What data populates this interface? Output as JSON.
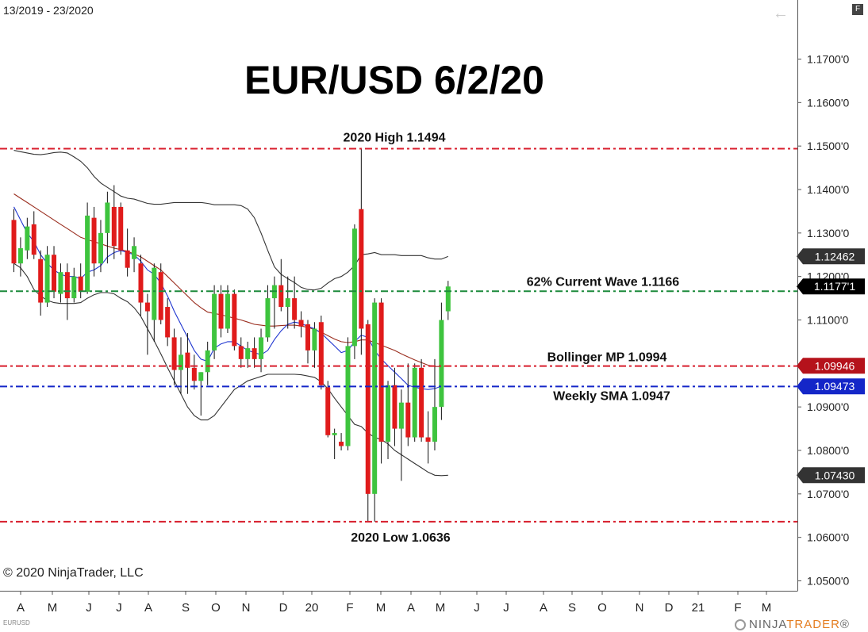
{
  "header": {
    "date_range": "13/2019 - 23/2020",
    "back_icon": "arrow-left-icon",
    "menu_badge": "F"
  },
  "footer": {
    "copyright": "© 2020 NinjaTrader, LLC",
    "symbol": "EURUSD",
    "brand_part1": "NINJA",
    "brand_part2": "TRADER",
    "brand_mark": "®"
  },
  "chart_data": {
    "type": "candlestick",
    "title": "EUR/USD 6/2/20",
    "y_axis": {
      "range": [
        1.0475,
        1.1875
      ],
      "ticks": [
        "1.1700'0",
        "1.1600'0",
        "1.1500'0",
        "1.1400'0",
        "1.1300'0",
        "1.1200'0",
        "1.1100'0",
        "1.0900'0",
        "1.0800'0",
        "1.0700'0",
        "1.0600'0",
        "1.0500'0"
      ],
      "tick_values": [
        1.17,
        1.16,
        1.15,
        1.14,
        1.13,
        1.12,
        1.11,
        1.09,
        1.08,
        1.07,
        1.06,
        1.05
      ]
    },
    "x_axis": {
      "labels": [
        "A",
        "M",
        "J",
        "J",
        "A",
        "S",
        "O",
        "N",
        "D",
        "20",
        "F",
        "M",
        "A",
        "M",
        "J",
        "J",
        "A",
        "S",
        "O",
        "N",
        "D",
        "21",
        "F",
        "M"
      ]
    },
    "horizontal_lines": [
      {
        "label": "2020 High 1.1494",
        "value": 1.1494,
        "color": "#d81e2c",
        "style": "dashdot"
      },
      {
        "label": "62% Current Wave 1.1166",
        "value": 1.1166,
        "color": "#1c8a3b",
        "style": "dashdot"
      },
      {
        "label": "Bollinger MP 1.0994",
        "value": 1.0994,
        "color": "#d81e2c",
        "style": "dashdot"
      },
      {
        "label": "Weekly SMA 1.0947",
        "value": 1.0947,
        "color": "#1426c8",
        "style": "dashdot"
      },
      {
        "label": "2020 Low 1.0636",
        "value": 1.0636,
        "color": "#d81e2c",
        "style": "dashdot"
      }
    ],
    "price_markers": [
      {
        "label": "1.12462",
        "value": 1.12462,
        "bg": "#333333"
      },
      {
        "label": "1.1177'1",
        "value": 1.11771,
        "bg": "#000000"
      },
      {
        "label": "1.09946",
        "value": 1.09946,
        "bg": "#b5121b"
      },
      {
        "label": "1.09473",
        "value": 1.09473,
        "bg": "#1426c8"
      },
      {
        "label": "1.07430",
        "value": 1.0743,
        "bg": "#333333"
      }
    ],
    "colors": {
      "up": "#3ec43e",
      "down": "#e01b1b",
      "bollinger": "#333333",
      "sma_fast": "#1f35d0",
      "sma_slow": "#9a2d1e"
    },
    "candles": [
      {
        "o": 1.133,
        "h": 1.1355,
        "l": 1.121,
        "c": 1.123
      },
      {
        "o": 1.123,
        "h": 1.129,
        "l": 1.12,
        "c": 1.1265
      },
      {
        "o": 1.126,
        "h": 1.1335,
        "l": 1.124,
        "c": 1.1315
      },
      {
        "o": 1.132,
        "h": 1.135,
        "l": 1.124,
        "c": 1.125
      },
      {
        "o": 1.124,
        "h": 1.126,
        "l": 1.111,
        "c": 1.114
      },
      {
        "o": 1.114,
        "h": 1.127,
        "l": 1.113,
        "c": 1.125
      },
      {
        "o": 1.125,
        "h": 1.127,
        "l": 1.115,
        "c": 1.1165
      },
      {
        "o": 1.116,
        "h": 1.123,
        "l": 1.114,
        "c": 1.121
      },
      {
        "o": 1.121,
        "h": 1.123,
        "l": 1.11,
        "c": 1.115
      },
      {
        "o": 1.115,
        "h": 1.122,
        "l": 1.114,
        "c": 1.12
      },
      {
        "o": 1.12,
        "h": 1.123,
        "l": 1.115,
        "c": 1.1165
      },
      {
        "o": 1.1165,
        "h": 1.137,
        "l": 1.116,
        "c": 1.134
      },
      {
        "o": 1.1335,
        "h": 1.136,
        "l": 1.12,
        "c": 1.123
      },
      {
        "o": 1.123,
        "h": 1.133,
        "l": 1.121,
        "c": 1.13
      },
      {
        "o": 1.13,
        "h": 1.1395,
        "l": 1.123,
        "c": 1.137
      },
      {
        "o": 1.136,
        "h": 1.141,
        "l": 1.124,
        "c": 1.127
      },
      {
        "o": 1.136,
        "h": 1.137,
        "l": 1.125,
        "c": 1.126
      },
      {
        "o": 1.126,
        "h": 1.131,
        "l": 1.12,
        "c": 1.122
      },
      {
        "o": 1.124,
        "h": 1.129,
        "l": 1.121,
        "c": 1.127
      },
      {
        "o": 1.123,
        "h": 1.125,
        "l": 1.111,
        "c": 1.114
      },
      {
        "o": 1.114,
        "h": 1.116,
        "l": 1.102,
        "c": 1.112
      },
      {
        "o": 1.11,
        "h": 1.123,
        "l": 1.105,
        "c": 1.122
      },
      {
        "o": 1.121,
        "h": 1.123,
        "l": 1.109,
        "c": 1.11
      },
      {
        "o": 1.113,
        "h": 1.115,
        "l": 1.104,
        "c": 1.106
      },
      {
        "o": 1.106,
        "h": 1.108,
        "l": 1.095,
        "c": 1.0985
      },
      {
        "o": 1.0985,
        "h": 1.106,
        "l": 1.093,
        "c": 1.102
      },
      {
        "o": 1.1025,
        "h": 1.107,
        "l": 1.093,
        "c": 1.099
      },
      {
        "o": 1.099,
        "h": 1.102,
        "l": 1.094,
        "c": 1.096
      },
      {
        "o": 1.096,
        "h": 1.098,
        "l": 1.088,
        "c": 1.098
      },
      {
        "o": 1.098,
        "h": 1.105,
        "l": 1.095,
        "c": 1.103
      },
      {
        "o": 1.103,
        "h": 1.118,
        "l": 1.101,
        "c": 1.116
      },
      {
        "o": 1.116,
        "h": 1.118,
        "l": 1.106,
        "c": 1.108
      },
      {
        "o": 1.108,
        "h": 1.118,
        "l": 1.107,
        "c": 1.116
      },
      {
        "o": 1.116,
        "h": 1.117,
        "l": 1.103,
        "c": 1.104
      },
      {
        "o": 1.104,
        "h": 1.106,
        "l": 1.099,
        "c": 1.101
      },
      {
        "o": 1.101,
        "h": 1.105,
        "l": 1.099,
        "c": 1.1035
      },
      {
        "o": 1.1035,
        "h": 1.106,
        "l": 1.099,
        "c": 1.101
      },
      {
        "o": 1.101,
        "h": 1.108,
        "l": 1.098,
        "c": 1.106
      },
      {
        "o": 1.106,
        "h": 1.118,
        "l": 1.105,
        "c": 1.115
      },
      {
        "o": 1.115,
        "h": 1.12,
        "l": 1.108,
        "c": 1.118
      },
      {
        "o": 1.118,
        "h": 1.124,
        "l": 1.112,
        "c": 1.113
      },
      {
        "o": 1.113,
        "h": 1.12,
        "l": 1.108,
        "c": 1.115
      },
      {
        "o": 1.115,
        "h": 1.12,
        "l": 1.108,
        "c": 1.11
      },
      {
        "o": 1.11,
        "h": 1.112,
        "l": 1.106,
        "c": 1.1085
      },
      {
        "o": 1.109,
        "h": 1.11,
        "l": 1.1,
        "c": 1.103
      },
      {
        "o": 1.103,
        "h": 1.1095,
        "l": 1.099,
        "c": 1.108
      },
      {
        "o": 1.1095,
        "h": 1.111,
        "l": 1.094,
        "c": 1.095
      },
      {
        "o": 1.0945,
        "h": 1.096,
        "l": 1.083,
        "c": 1.0835
      },
      {
        "o": 1.0835,
        "h": 1.085,
        "l": 1.078,
        "c": 1.084
      },
      {
        "o": 1.082,
        "h": 1.084,
        "l": 1.08,
        "c": 1.081
      },
      {
        "o": 1.081,
        "h": 1.106,
        "l": 1.08,
        "c": 1.104
      },
      {
        "o": 1.104,
        "h": 1.132,
        "l": 1.101,
        "c": 1.131
      },
      {
        "o": 1.1355,
        "h": 1.1494,
        "l": 1.102,
        "c": 1.108
      },
      {
        "o": 1.109,
        "h": 1.11,
        "l": 1.0636,
        "c": 1.07
      },
      {
        "o": 1.07,
        "h": 1.115,
        "l": 1.0636,
        "c": 1.114
      },
      {
        "o": 1.114,
        "h": 1.115,
        "l": 1.077,
        "c": 1.082
      },
      {
        "o": 1.082,
        "h": 1.096,
        "l": 1.078,
        "c": 1.095
      },
      {
        "o": 1.095,
        "h": 1.099,
        "l": 1.081,
        "c": 1.085
      },
      {
        "o": 1.085,
        "h": 1.094,
        "l": 1.073,
        "c": 1.091
      },
      {
        "o": 1.091,
        "h": 1.1,
        "l": 1.081,
        "c": 1.083
      },
      {
        "o": 1.083,
        "h": 1.1,
        "l": 1.082,
        "c": 1.099
      },
      {
        "o": 1.099,
        "h": 1.101,
        "l": 1.082,
        "c": 1.083
      },
      {
        "o": 1.083,
        "h": 1.089,
        "l": 1.077,
        "c": 1.082
      },
      {
        "o": 1.082,
        "h": 1.101,
        "l": 1.08,
        "c": 1.09
      },
      {
        "o": 1.09,
        "h": 1.114,
        "l": 1.087,
        "c": 1.11
      },
      {
        "o": 1.112,
        "h": 1.119,
        "l": 1.11,
        "c": 1.1177
      }
    ],
    "sma_fast": [
      1.136,
      1.133,
      1.13,
      1.128,
      1.125,
      1.123,
      1.1215,
      1.1205,
      1.12,
      1.12,
      1.1195,
      1.121,
      1.1215,
      1.1225,
      1.1245,
      1.1255,
      1.126,
      1.1255,
      1.125,
      1.1235,
      1.1215,
      1.1205,
      1.1185,
      1.1155,
      1.112,
      1.109,
      1.106,
      1.103,
      1.101,
      1.1005,
      1.1035,
      1.1045,
      1.105,
      1.105,
      1.104,
      1.103,
      1.1025,
      1.102,
      1.103,
      1.1055,
      1.1075,
      1.109,
      1.1095,
      1.1092,
      1.1085,
      1.108,
      1.107,
      1.1055,
      1.104,
      1.1025,
      1.103,
      1.105,
      1.1065,
      1.106,
      1.103,
      1.101,
      1.0995,
      1.098,
      1.0965,
      1.095,
      1.0945,
      1.0942,
      1.094,
      1.0942,
      1.0948,
      1.0947
    ],
    "sma_slow": [
      1.139,
      1.138,
      1.137,
      1.136,
      1.135,
      1.134,
      1.133,
      1.132,
      1.131,
      1.13,
      1.129,
      1.1285,
      1.128,
      1.1275,
      1.127,
      1.1265,
      1.1262,
      1.1258,
      1.1252,
      1.1245,
      1.1235,
      1.1225,
      1.1215,
      1.12,
      1.1185,
      1.117,
      1.1155,
      1.114,
      1.1128,
      1.1118,
      1.1115,
      1.1112,
      1.1108,
      1.1104,
      1.11,
      1.1095,
      1.109,
      1.1088,
      1.1086,
      1.1086,
      1.1087,
      1.1088,
      1.1088,
      1.1086,
      1.1083,
      1.1078,
      1.1072,
      1.1064,
      1.1056,
      1.105,
      1.1048,
      1.105,
      1.1054,
      1.1054,
      1.1048,
      1.1042,
      1.1036,
      1.103,
      1.1022,
      1.1015,
      1.1008,
      1.1002,
      1.0996,
      1.0993,
      1.0993,
      1.0994
    ],
    "bollinger_upper": [
      1.149,
      1.1487,
      1.1484,
      1.1481,
      1.148,
      1.1482,
      1.1485,
      1.1486,
      1.1484,
      1.1475,
      1.1465,
      1.145,
      1.143,
      1.1415,
      1.1405,
      1.1395,
      1.1385,
      1.138,
      1.1378,
      1.1373,
      1.1368,
      1.1366,
      1.1366,
      1.1368,
      1.137,
      1.137,
      1.137,
      1.137,
      1.137,
      1.1368,
      1.1365,
      1.1365,
      1.1365,
      1.1365,
      1.1363,
      1.1355,
      1.1335,
      1.13,
      1.126,
      1.1222,
      1.1205,
      1.1195,
      1.1186,
      1.1175,
      1.117,
      1.1169,
      1.1173,
      1.1185,
      1.1195,
      1.12,
      1.121,
      1.1225,
      1.125,
      1.1252,
      1.1255,
      1.125,
      1.125,
      1.125,
      1.1248,
      1.1248,
      1.1248,
      1.1248,
      1.1243,
      1.124,
      1.124,
      1.1246
    ],
    "bollinger_lower": [
      1.123,
      1.122,
      1.12,
      1.117,
      1.1155,
      1.1145,
      1.114,
      1.1138,
      1.1138,
      1.1138,
      1.114,
      1.115,
      1.1158,
      1.1163,
      1.1163,
      1.116,
      1.115,
      1.1142,
      1.1128,
      1.1108,
      1.108,
      1.1052,
      1.1022,
      1.099,
      1.096,
      1.093,
      1.09,
      1.088,
      1.087,
      1.087,
      1.088,
      1.09,
      1.092,
      1.094,
      1.095,
      1.096,
      1.0965,
      1.097,
      1.0975,
      1.0975,
      1.0975,
      1.0975,
      1.0975,
      1.0974,
      1.0971,
      1.0968,
      1.0958,
      1.0942,
      1.092,
      1.09,
      1.088,
      1.086,
      1.0855,
      1.084,
      1.083,
      1.0825,
      1.0815,
      1.08,
      1.079,
      1.078,
      1.077,
      1.076,
      1.075,
      1.0743,
      1.0742,
      1.0743
    ]
  }
}
